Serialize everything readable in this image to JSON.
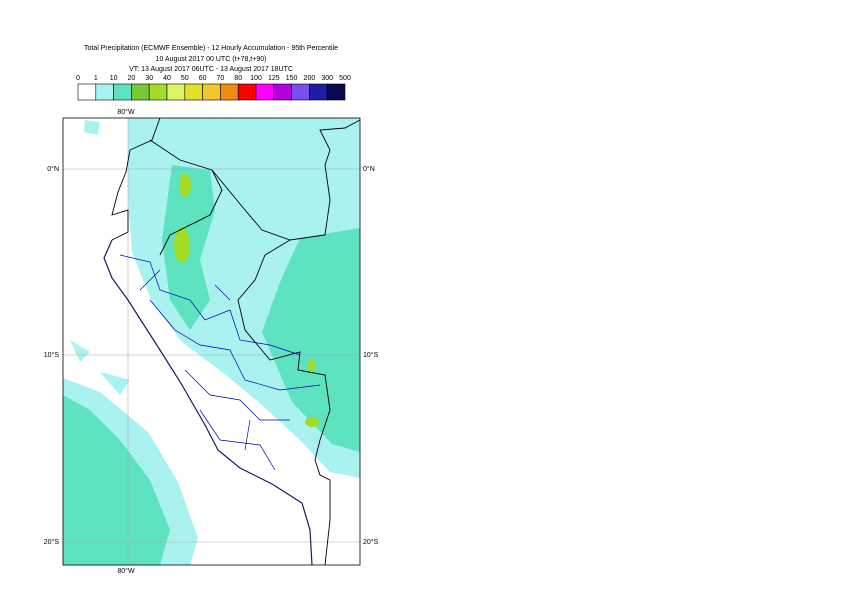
{
  "header": {
    "lines": [
      "Total Precipitation (ECMWF Ensemble) - 12 Hourly Accumulation - 95th Percentile",
      "10 August 2017 00 UTC (t+78,t+90)",
      "VT: 13 August 2017 06UTC - 13 August 2017 18UTC"
    ]
  },
  "legend": {
    "labels": [
      "0",
      "1",
      "10",
      "20",
      "30",
      "40",
      "50",
      "60",
      "70",
      "80",
      "100",
      "125",
      "150",
      "200",
      "300",
      "500"
    ],
    "colors": [
      "#ffffff",
      "#aaf2f0",
      "#5ee3c0",
      "#78c832",
      "#a2dc28",
      "#dcf564",
      "#e1e128",
      "#f0c828",
      "#f08c14",
      "#ff0000",
      "#ff00ff",
      "#b400dc",
      "#7850f0",
      "#1e1ea0",
      "#0a0a50"
    ]
  },
  "map": {
    "lon_top": "80°W",
    "lon_bottom": "80°W",
    "lat_left": [
      "0°N",
      "10°S",
      "20°S"
    ],
    "lat_right": [
      "0°N",
      "10°S",
      "20°S"
    ]
  }
}
